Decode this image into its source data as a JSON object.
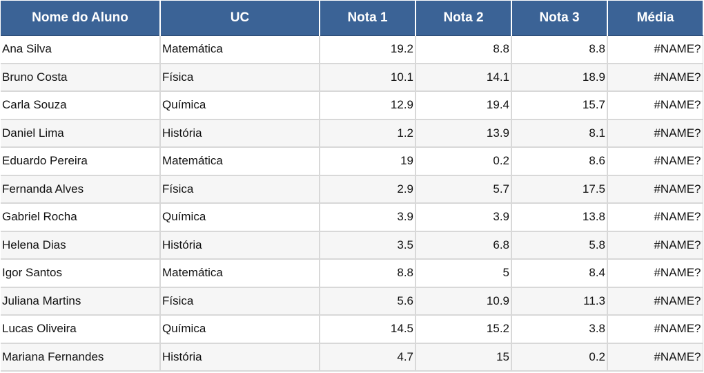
{
  "columns": [
    "Nome do Aluno",
    "UC",
    "Nota 1",
    "Nota 2",
    "Nota 3",
    "Média"
  ],
  "rows": [
    {
      "nome": "Ana Silva",
      "uc": "Matemática",
      "nota1": "19.2",
      "nota2": "8.8",
      "nota3": "8.8",
      "media": "#NAME?"
    },
    {
      "nome": "Bruno Costa",
      "uc": "Física",
      "nota1": "10.1",
      "nota2": "14.1",
      "nota3": "18.9",
      "media": "#NAME?"
    },
    {
      "nome": "Carla Souza",
      "uc": "Química",
      "nota1": "12.9",
      "nota2": "19.4",
      "nota3": "15.7",
      "media": "#NAME?"
    },
    {
      "nome": "Daniel Lima",
      "uc": "História",
      "nota1": "1.2",
      "nota2": "13.9",
      "nota3": "8.1",
      "media": "#NAME?"
    },
    {
      "nome": "Eduardo Pereira",
      "uc": "Matemática",
      "nota1": "19",
      "nota2": "0.2",
      "nota3": "8.6",
      "media": "#NAME?"
    },
    {
      "nome": "Fernanda Alves",
      "uc": "Física",
      "nota1": "2.9",
      "nota2": "5.7",
      "nota3": "17.5",
      "media": "#NAME?"
    },
    {
      "nome": "Gabriel Rocha",
      "uc": "Química",
      "nota1": "3.9",
      "nota2": "3.9",
      "nota3": "13.8",
      "media": "#NAME?"
    },
    {
      "nome": "Helena Dias",
      "uc": "História",
      "nota1": "3.5",
      "nota2": "6.8",
      "nota3": "5.8",
      "media": "#NAME?"
    },
    {
      "nome": "Igor Santos",
      "uc": "Matemática",
      "nota1": "8.8",
      "nota2": "5",
      "nota3": "8.4",
      "media": "#NAME?"
    },
    {
      "nome": "Juliana Martins",
      "uc": "Física",
      "nota1": "5.6",
      "nota2": "10.9",
      "nota3": "11.3",
      "media": "#NAME?"
    },
    {
      "nome": "Lucas Oliveira",
      "uc": "Química",
      "nota1": "14.5",
      "nota2": "15.2",
      "nota3": "3.8",
      "media": "#NAME?"
    },
    {
      "nome": "Mariana Fernandes",
      "uc": "História",
      "nota1": "4.7",
      "nota2": "15",
      "nota3": "0.2",
      "media": "#NAME?"
    }
  ],
  "colors": {
    "header_bg": "#3b6396",
    "header_text": "#ffffff",
    "row_alt_bg": "#f6f6f6",
    "grid": "#d8d8d8"
  }
}
